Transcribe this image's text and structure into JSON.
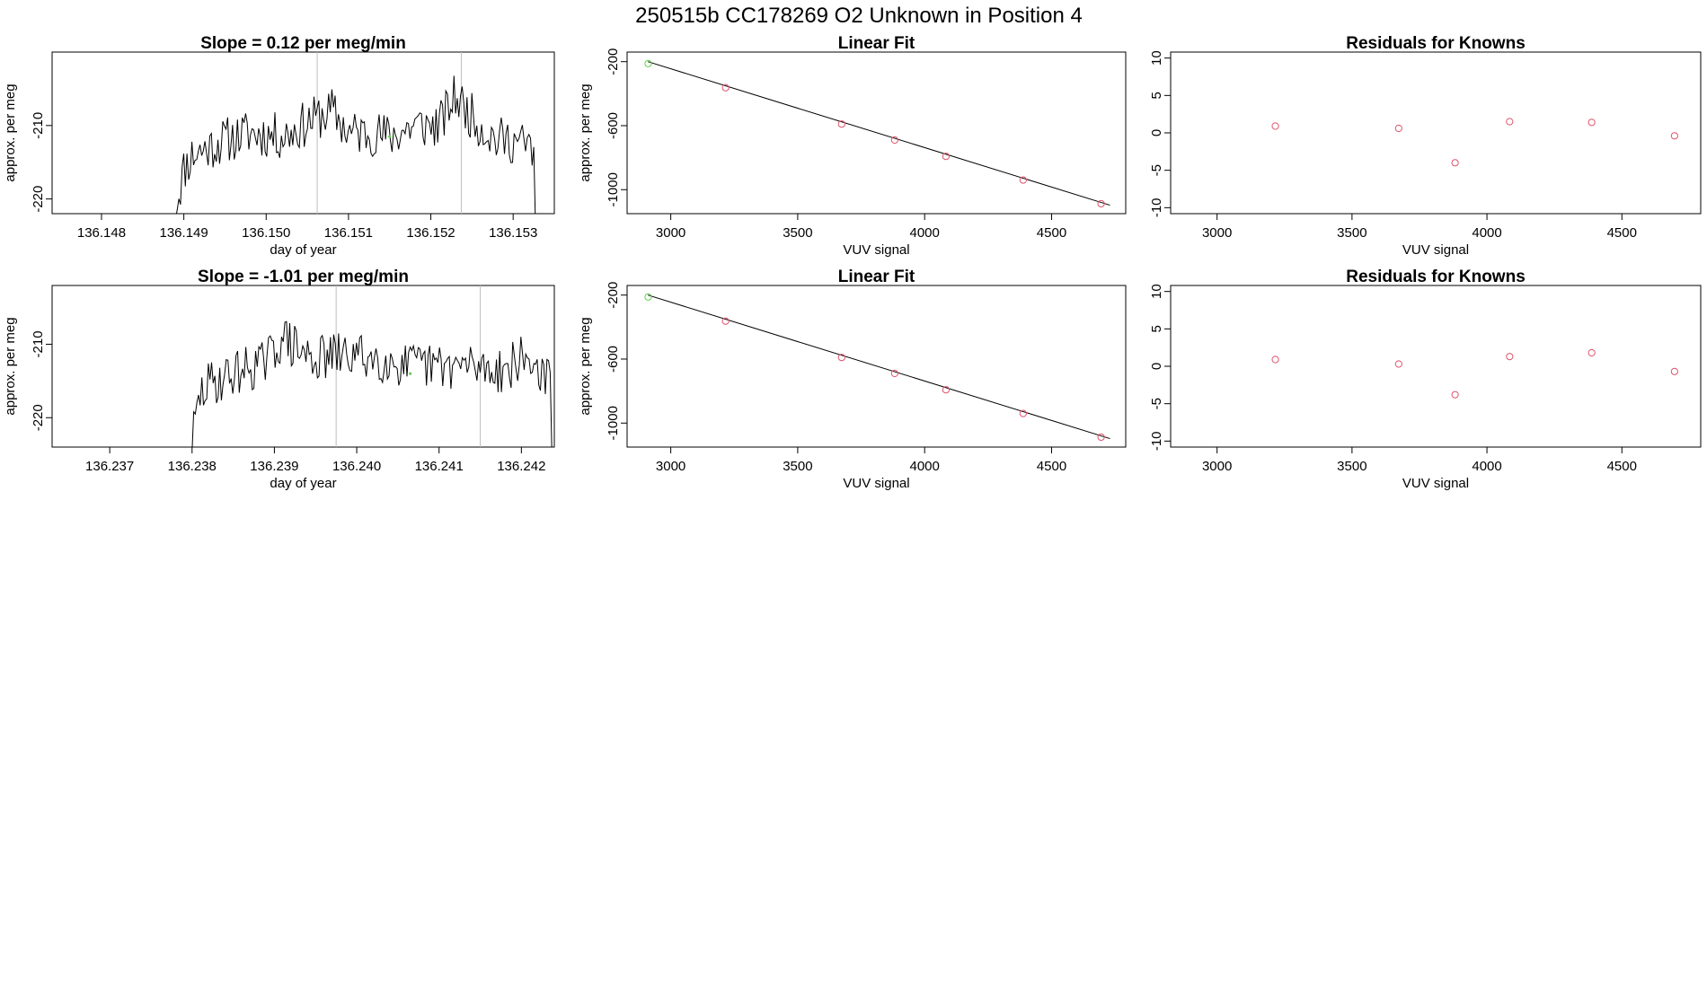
{
  "suptitle": "250515b      CC178269   O2 Unknown in Position  4",
  "colors": {
    "axis": "#000000",
    "series": "#000000",
    "known": "#DF536B",
    "reference": "#61D04F",
    "marker": "#BEBEBE"
  },
  "chart_data": [
    {
      "type": "line",
      "title": "Slope =  0.12  per meg/min",
      "xlabel": "day of year",
      "ylabel": "approx. per meg",
      "xlim": [
        136.1474,
        136.1535
      ],
      "ylim": [
        -222.0,
        -200.0
      ],
      "xticks": [
        "136.148",
        "136.149",
        "136.150",
        "136.151",
        "136.152",
        "136.153"
      ],
      "yticks": [
        "-220",
        "-210"
      ],
      "grid": false,
      "vlines": [
        136.15062,
        136.15237
      ],
      "start": 136.1489,
      "end": 136.15325,
      "noise_seed": 11,
      "green_point": {
        "x": 136.1515,
        "y": -211.5
      },
      "x": [
        136.1489,
        136.149,
        136.1491,
        136.1493,
        136.1495,
        136.1498,
        136.1502,
        136.1506,
        136.1508,
        136.151,
        136.1513,
        136.1515,
        136.1518,
        136.1521,
        136.1523,
        136.1524,
        136.1526,
        136.1528,
        136.153,
        136.1532
      ],
      "y": [
        -221.0,
        -216.0,
        -214.0,
        -213.0,
        -212.0,
        -211.0,
        -211.5,
        -209.0,
        -208.0,
        -211.0,
        -211.0,
        -211.5,
        -210.0,
        -210.0,
        -206.0,
        -207.5,
        -210.0,
        -212.0,
        -212.0,
        -213.0
      ]
    },
    {
      "type": "scatter",
      "title": "Linear Fit",
      "xlabel": "VUV signal",
      "ylabel": "approx. per meg",
      "xlim": [
        2828,
        4792
      ],
      "ylim": [
        -1150,
        -140
      ],
      "xticks": [
        3000,
        3500,
        4000,
        4500
      ],
      "yticks": [
        -200,
        -600,
        -1000
      ],
      "fit_line": {
        "x": [
          2910,
          4730
        ],
        "y": [
          -200,
          -1097
        ]
      },
      "points": [
        {
          "x": 2911,
          "y": -212,
          "group": "reference"
        },
        {
          "x": 3216,
          "y": -363,
          "group": "known"
        },
        {
          "x": 3673,
          "y": -590,
          "group": "known"
        },
        {
          "x": 3882,
          "y": -690,
          "group": "known"
        },
        {
          "x": 4084,
          "y": -792,
          "group": "known"
        },
        {
          "x": 4388,
          "y": -940,
          "group": "known"
        },
        {
          "x": 4695,
          "y": -1088,
          "group": "known"
        }
      ]
    },
    {
      "type": "scatter",
      "title": "Residuals for Knowns",
      "xlabel": "VUV signal",
      "ylabel": "",
      "xlim": [
        2828,
        4792
      ],
      "ylim": [
        -10.8,
        10.8
      ],
      "xticks": [
        3000,
        3500,
        4000,
        4500
      ],
      "yticks": [
        -10,
        -5,
        0,
        5,
        10
      ],
      "points": [
        {
          "x": 3216,
          "y": 0.9
        },
        {
          "x": 3673,
          "y": 0.6
        },
        {
          "x": 3882,
          "y": -4.0
        },
        {
          "x": 4084,
          "y": 1.5
        },
        {
          "x": 4388,
          "y": 1.4
        },
        {
          "x": 4695,
          "y": -0.4
        }
      ]
    },
    {
      "type": "line",
      "title": "Slope =  -1.01  per meg/min",
      "xlabel": "day of year",
      "ylabel": "approx. per meg",
      "xlim": [
        136.2363,
        136.2424
      ],
      "ylim": [
        -224.0,
        -202.0
      ],
      "xticks": [
        "136.237",
        "136.238",
        "136.239",
        "136.240",
        "136.241",
        "136.242"
      ],
      "yticks": [
        "-220",
        "-210"
      ],
      "grid": false,
      "vlines": [
        136.23975,
        136.2415
      ],
      "start": 136.238,
      "end": 136.24235,
      "noise_seed": 29,
      "green_point": {
        "x": 136.24065,
        "y": -214.0
      },
      "x": [
        136.238,
        136.2381,
        136.2382,
        136.2384,
        136.2386,
        136.2389,
        136.2391,
        136.2393,
        136.2395,
        136.2398,
        136.24,
        136.2403,
        136.2406,
        136.2409,
        136.2412,
        136.2415,
        136.2418,
        136.242,
        136.2422,
        136.2423
      ],
      "y": [
        -223.0,
        -217.0,
        -215.5,
        -214.5,
        -213.5,
        -212.5,
        -209.0,
        -211.0,
        -212.0,
        -211.5,
        -211.5,
        -212.0,
        -213.0,
        -213.0,
        -213.0,
        -213.0,
        -213.5,
        -212.0,
        -213.0,
        -215.0
      ]
    },
    {
      "type": "scatter",
      "title": "Linear Fit",
      "xlabel": "VUV signal",
      "ylabel": "approx. per meg",
      "xlim": [
        2828,
        4792
      ],
      "ylim": [
        -1150,
        -140
      ],
      "xticks": [
        3000,
        3500,
        4000,
        4500
      ],
      "yticks": [
        -200,
        -600,
        -1000
      ],
      "fit_line": {
        "x": [
          2910,
          4730
        ],
        "y": [
          -200,
          -1097
        ]
      },
      "points": [
        {
          "x": 2911,
          "y": -212,
          "group": "reference"
        },
        {
          "x": 3216,
          "y": -363,
          "group": "known"
        },
        {
          "x": 3673,
          "y": -590,
          "group": "known"
        },
        {
          "x": 3882,
          "y": -690,
          "group": "known"
        },
        {
          "x": 4084,
          "y": -792,
          "group": "known"
        },
        {
          "x": 4388,
          "y": -940,
          "group": "known"
        },
        {
          "x": 4695,
          "y": -1088,
          "group": "known"
        }
      ]
    },
    {
      "type": "scatter",
      "title": "Residuals for Knowns",
      "xlabel": "VUV signal",
      "ylabel": "",
      "xlim": [
        2828,
        4792
      ],
      "ylim": [
        -10.8,
        10.8
      ],
      "xticks": [
        3000,
        3500,
        4000,
        4500
      ],
      "yticks": [
        -10,
        -5,
        0,
        5,
        10
      ],
      "points": [
        {
          "x": 3216,
          "y": 0.9
        },
        {
          "x": 3673,
          "y": 0.3
        },
        {
          "x": 3882,
          "y": -3.8
        },
        {
          "x": 4084,
          "y": 1.3
        },
        {
          "x": 4388,
          "y": 1.8
        },
        {
          "x": 4695,
          "y": -0.7
        }
      ]
    }
  ]
}
